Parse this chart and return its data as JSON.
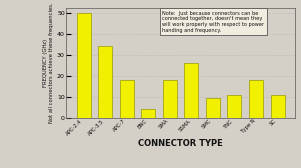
{
  "categories": [
    "APC-2.4",
    "APC-3.5",
    "APC-7",
    "BNC",
    "SMA",
    "SSMA",
    "SMC",
    "TNC",
    "Type N",
    "SC"
  ],
  "values": [
    50,
    34,
    18,
    4,
    18,
    26,
    9.5,
    11,
    18,
    11
  ],
  "bar_color": "#f0f000",
  "bar_edge_color": "#999900",
  "xlabel": "CONNECTOR TYPE",
  "ylabel_line1": "FREQUENCY (GHz)",
  "ylabel_line2": "Not all connectors achieve these frequencies.",
  "ylim": [
    0,
    52
  ],
  "yticks": [
    0,
    10,
    20,
    30,
    40,
    50
  ],
  "note_text": "Note:  Just because connectors can be\nconnected together, doesn't mean they\nwill work properly with respect to power\nhanding and frequency.",
  "background_color": "#d4d0c8",
  "plot_bg_color": "#d4d0c8",
  "note_box_color": "#f0ede0",
  "grid_color": "#aaaaaa"
}
